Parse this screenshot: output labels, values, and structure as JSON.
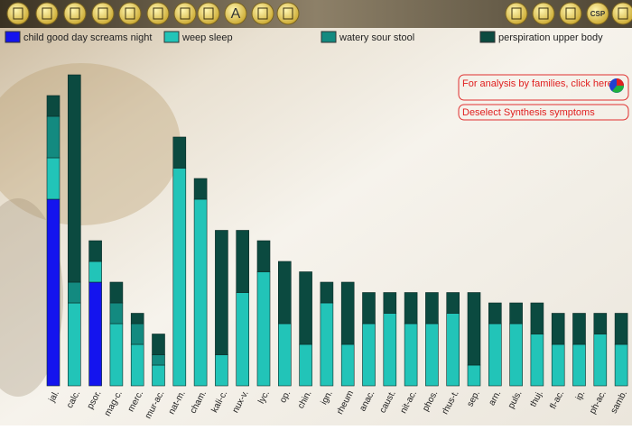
{
  "toolbar": {
    "icon_letters": [
      "A",
      "CSP"
    ]
  },
  "buttons": {
    "families": "For analysis by families, click here",
    "deselect": "Deselect Synthesis symptoms"
  },
  "chart_data": {
    "type": "bar",
    "stacked": true,
    "categories": [
      "jal.",
      "calc.",
      "psor.",
      "mag-c.",
      "merc.",
      "mur-ac.",
      "nat-m.",
      "cham.",
      "kali-c.",
      "nux-v.",
      "lyc.",
      "op.",
      "chin.",
      "ign.",
      "rheum",
      "anac.",
      "caust.",
      "nit-ac.",
      "phos.",
      "rhus-t.",
      "sep.",
      "arn.",
      "puls.",
      "thuj.",
      "fl-ac.",
      "ip.",
      "ph-ac.",
      "samb."
    ],
    "series": [
      {
        "name": "child good day screams night",
        "color": "#1414ee",
        "values": [
          9,
          0,
          5,
          0,
          0,
          0,
          0,
          0,
          0,
          0,
          0,
          0,
          0,
          0,
          0,
          0,
          0,
          0,
          0,
          0,
          0,
          0,
          0,
          0,
          0,
          0,
          0,
          0
        ]
      },
      {
        "name": "weep sleep",
        "color": "#22c4b8",
        "values": [
          2,
          4,
          1,
          3,
          2,
          1,
          10.5,
          9,
          1.5,
          4.5,
          5.5,
          3,
          2,
          4,
          2,
          3,
          3.5,
          3,
          3,
          3.5,
          1,
          3,
          3,
          2.5,
          2,
          2,
          2.5,
          2
        ]
      },
      {
        "name": "watery sour stool",
        "color": "#138a80",
        "values": [
          2,
          1,
          0,
          1,
          1,
          0.5,
          0,
          0,
          0,
          0,
          0,
          0,
          0,
          0,
          0,
          0,
          0,
          0,
          0,
          0,
          0,
          0,
          0,
          0,
          0,
          0,
          0,
          0
        ]
      },
      {
        "name": "perspiration upper body",
        "color": "#0b4a40",
        "values": [
          1,
          10,
          1,
          1,
          0.5,
          1,
          1.5,
          1,
          6,
          3,
          1.5,
          3,
          3.5,
          1,
          3,
          1.5,
          1,
          1.5,
          1.5,
          1,
          3.5,
          1,
          1,
          1.5,
          1.5,
          1.5,
          1,
          1.5
        ]
      }
    ],
    "ylim": [
      0,
      15
    ]
  }
}
